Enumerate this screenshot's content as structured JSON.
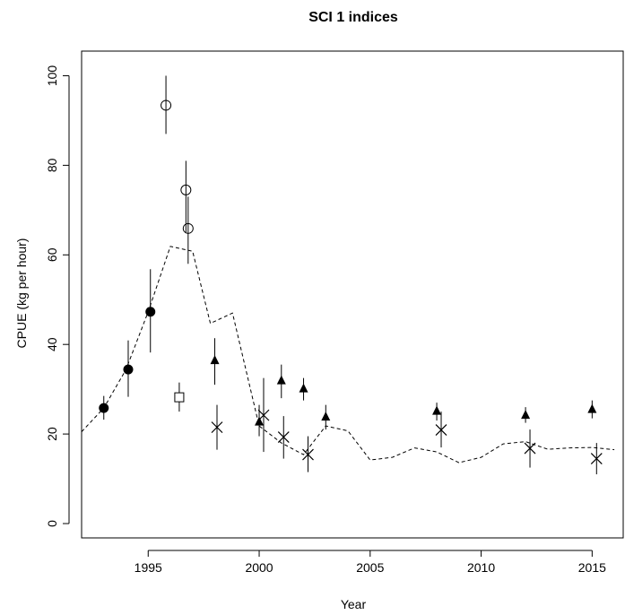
{
  "chart_data": {
    "type": "scatter",
    "title": "SCI 1 indices",
    "xlabel": "Year",
    "ylabel": "CPUE (kg per hour)",
    "xlim": [
      1992.0,
      2016.4
    ],
    "ylim": [
      -3.2,
      105.5
    ],
    "x_ticks": [
      1995,
      2000,
      2005,
      2010,
      2015
    ],
    "y_ticks": [
      0,
      20,
      40,
      60,
      80,
      100
    ],
    "grid": false,
    "legend": "none",
    "series": [
      {
        "marker": "filled-circle",
        "points": [
          {
            "x": 1993.0,
            "y": 25.8,
            "lo": 23.2,
            "hi": 28.5
          },
          {
            "x": 1994.1,
            "y": 34.4,
            "lo": 28.3,
            "hi": 40.9
          },
          {
            "x": 1995.1,
            "y": 47.3,
            "lo": 38.2,
            "hi": 56.8
          }
        ]
      },
      {
        "marker": "open-circle",
        "points": [
          {
            "x": 1995.8,
            "y": 93.4,
            "lo": 87.0,
            "hi": 100.0
          },
          {
            "x": 1996.7,
            "y": 74.5,
            "lo": 65.0,
            "hi": 81.0
          },
          {
            "x": 1996.8,
            "y": 65.9,
            "lo": 58.0,
            "hi": 73.0
          }
        ]
      },
      {
        "marker": "open-square",
        "points": [
          {
            "x": 1996.4,
            "y": 28.2,
            "lo": 25.0,
            "hi": 31.5
          }
        ]
      },
      {
        "marker": "filled-triangle",
        "points": [
          {
            "x": 1998.0,
            "y": 36.4,
            "lo": 31.0,
            "hi": 41.4
          },
          {
            "x": 2000.0,
            "y": 22.7,
            "lo": 19.5,
            "hi": 26.5
          },
          {
            "x": 2001.0,
            "y": 31.9,
            "lo": 28.0,
            "hi": 35.5
          },
          {
            "x": 2002.0,
            "y": 30.1,
            "lo": 27.5,
            "hi": 32.5
          },
          {
            "x": 2003.0,
            "y": 23.8,
            "lo": 21.0,
            "hi": 26.5
          },
          {
            "x": 2008.0,
            "y": 25.1,
            "lo": 23.0,
            "hi": 27.0
          },
          {
            "x": 2012.0,
            "y": 24.2,
            "lo": 22.5,
            "hi": 26.0
          },
          {
            "x": 2015.0,
            "y": 25.5,
            "lo": 23.5,
            "hi": 27.5
          }
        ]
      },
      {
        "marker": "cross",
        "points": [
          {
            "x": 1998.1,
            "y": 21.5,
            "lo": 16.5,
            "hi": 26.5
          },
          {
            "x": 2000.2,
            "y": 24.2,
            "lo": 16.0,
            "hi": 32.5
          },
          {
            "x": 2001.1,
            "y": 19.3,
            "lo": 14.5,
            "hi": 24.0
          },
          {
            "x": 2002.2,
            "y": 15.4,
            "lo": 11.5,
            "hi": 19.5
          },
          {
            "x": 2008.2,
            "y": 20.9,
            "lo": 17.0,
            "hi": 25.0
          },
          {
            "x": 2012.2,
            "y": 16.8,
            "lo": 12.5,
            "hi": 21.0
          },
          {
            "x": 2015.2,
            "y": 14.5,
            "lo": 11.0,
            "hi": 18.0
          }
        ]
      }
    ],
    "fitted_line": {
      "style": "dashed",
      "x": [
        1992.0,
        1993.0,
        1994.0,
        1995.0,
        1996.0,
        1997.0,
        1997.8,
        1998.8,
        2000.0,
        2001.0,
        2002.0,
        2003.0,
        2004.0,
        2005.0,
        2006.0,
        2007.0,
        2008.0,
        2009.0,
        2010.0,
        2011.0,
        2012.0,
        2013.0,
        2014.0,
        2015.0,
        2016.0
      ],
      "y": [
        20.5,
        25.8,
        34.4,
        47.3,
        61.9,
        60.8,
        44.7,
        47.0,
        21.8,
        18.0,
        15.4,
        21.8,
        20.7,
        14.2,
        14.8,
        16.9,
        16.0,
        13.6,
        14.8,
        17.8,
        18.3,
        16.6,
        16.9,
        17.0,
        16.5
      ]
    }
  }
}
